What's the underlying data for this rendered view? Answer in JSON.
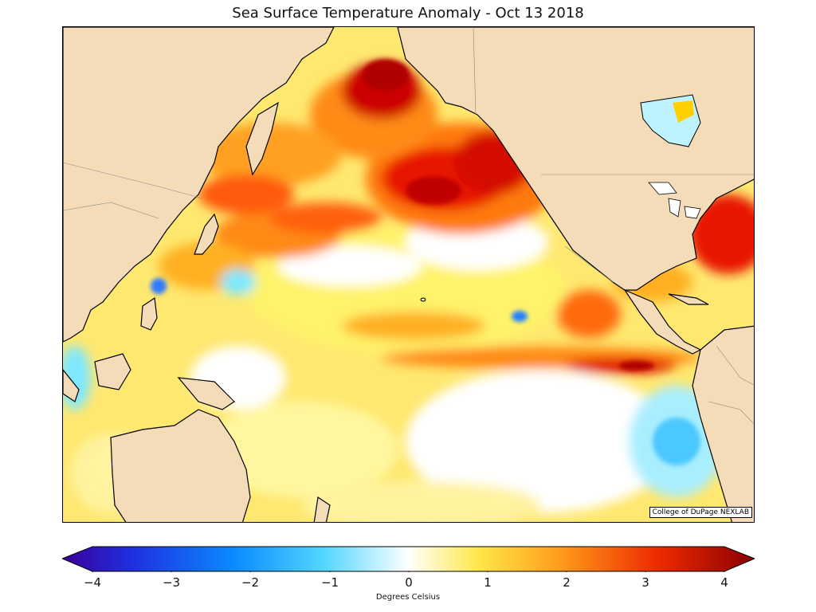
{
  "title": "Sea Surface Temperature Anomaly - Oct 13 2018",
  "credit": "College of DuPage NEXLAB",
  "colorbar": {
    "label": "Degrees Celsius",
    "ticks": [
      "−4",
      "−3",
      "−2",
      "−1",
      "0",
      "1",
      "2",
      "3",
      "4"
    ],
    "range": [
      -4,
      4
    ],
    "colors": [
      "#3a0099",
      "#1f2ee0",
      "#0a8cff",
      "#55d7ff",
      "#ffffff",
      "#ffe84a",
      "#ff9a1a",
      "#ee2a00",
      "#8a0000"
    ]
  },
  "map": {
    "land_color": "#f3dcb7",
    "coastline_color": "#000000",
    "anomaly_colors": {
      "strong_warm": "#c40000",
      "warm": "#ff7a10",
      "mild_warm": "#ffd000",
      "slight_warm": "#fff25a",
      "neutral": "#ffffff",
      "cool": "#7ee8ff",
      "cold": "#1090ff"
    }
  }
}
